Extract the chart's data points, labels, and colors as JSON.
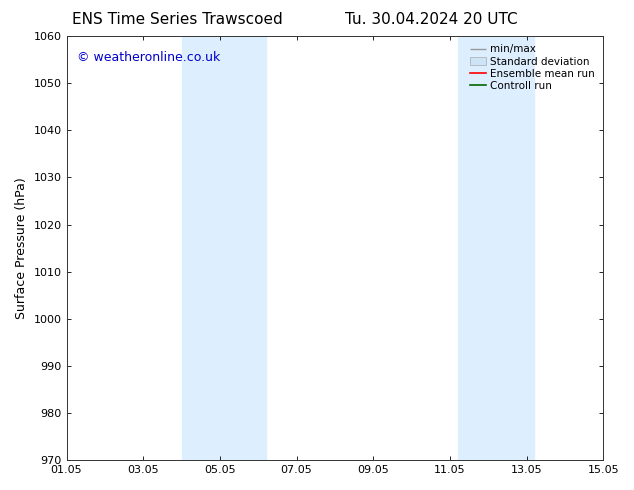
{
  "title_left": "ENS Time Series Trawscoed",
  "title_right": "Tu. 30.04.2024 20 UTC",
  "ylabel": "Surface Pressure (hPa)",
  "ylim": [
    970,
    1060
  ],
  "yticks": [
    970,
    980,
    990,
    1000,
    1010,
    1020,
    1030,
    1040,
    1050,
    1060
  ],
  "xtick_labels": [
    "01.05",
    "03.05",
    "05.05",
    "07.05",
    "09.05",
    "11.05",
    "13.05",
    "15.05"
  ],
  "xtick_positions": [
    0,
    2,
    4,
    6,
    8,
    10,
    12,
    14
  ],
  "shaded_bands": [
    {
      "x_start": 3.0,
      "x_end": 5.2
    },
    {
      "x_start": 10.2,
      "x_end": 12.2
    }
  ],
  "watermark": "© weatheronline.co.uk",
  "watermark_color": "#0000cc",
  "background_color": "#ffffff",
  "plot_background": "#ffffff",
  "band_color": "#ddeeff",
  "legend_items": [
    {
      "label": "min/max"
    },
    {
      "label": "Standard deviation"
    },
    {
      "label": "Ensemble mean run"
    },
    {
      "label": "Controll run"
    }
  ],
  "title_fontsize": 11,
  "tick_fontsize": 8,
  "legend_fontsize": 7.5,
  "ylabel_fontsize": 9,
  "watermark_fontsize": 9
}
